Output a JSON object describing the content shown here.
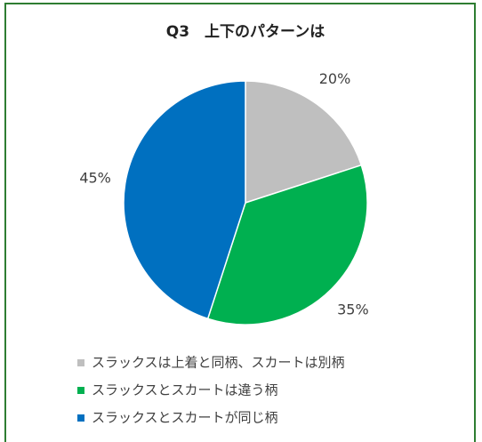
{
  "chart_data": {
    "type": "pie",
    "title": "Q3　上下のパターンは",
    "categories": [
      "スラックスは上着と同柄、スカートは別柄",
      "スラックスとスカートは違う柄",
      "スラックスとスカートが同じ柄"
    ],
    "values": [
      20,
      35,
      45
    ],
    "value_labels": [
      "20%",
      "35%",
      "45%"
    ],
    "colors": [
      "#bfbfbf",
      "#00b050",
      "#0070c0"
    ],
    "legend": "bottom"
  }
}
